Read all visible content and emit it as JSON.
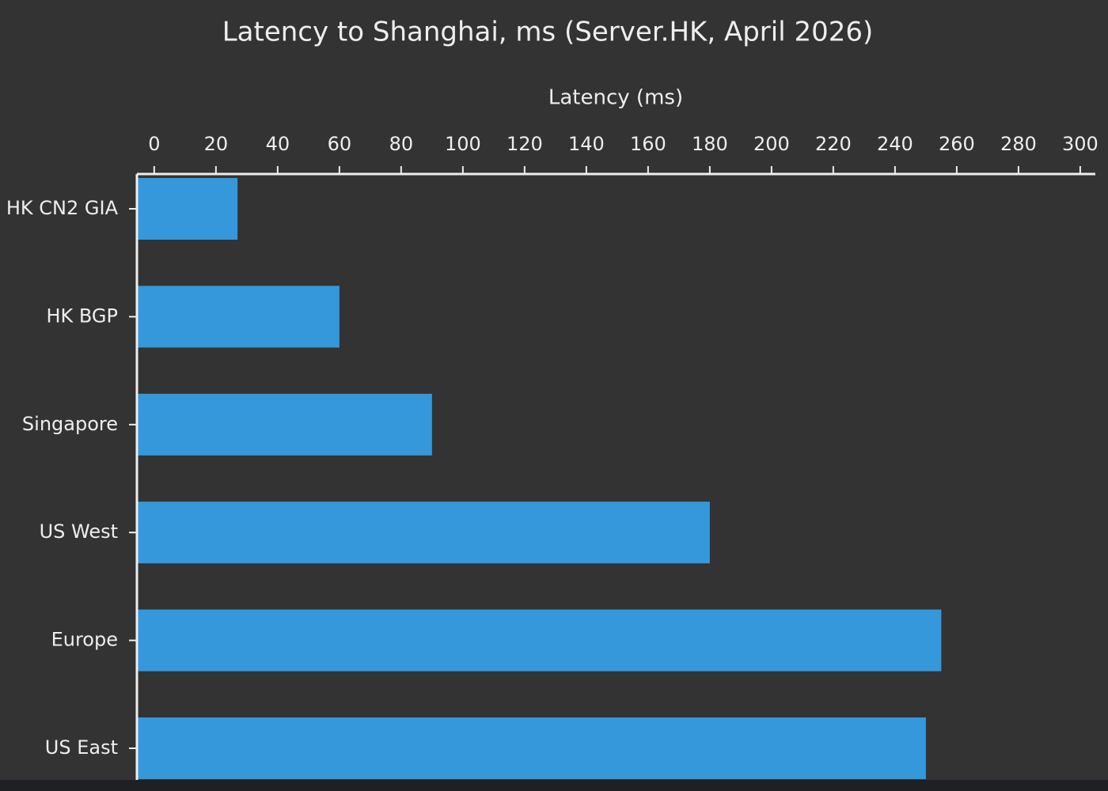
{
  "chart_data": {
    "type": "bar",
    "orientation": "horizontal",
    "title": "Latency to Shanghai, ms (Server.HK, April 2026)",
    "x_label": "Latency (ms)",
    "categories": [
      "HK CN2 GIA",
      "HK BGP",
      "Singapore",
      "US West",
      "Europe",
      "US East"
    ],
    "values": [
      27,
      60,
      90,
      180,
      255,
      250
    ],
    "color": "#3498db",
    "xlim": [
      -5.6,
      304.9
    ],
    "xticks": [
      0,
      20,
      40,
      60,
      80,
      100,
      120,
      140,
      160,
      180,
      200,
      220,
      240,
      260,
      280,
      300
    ]
  }
}
